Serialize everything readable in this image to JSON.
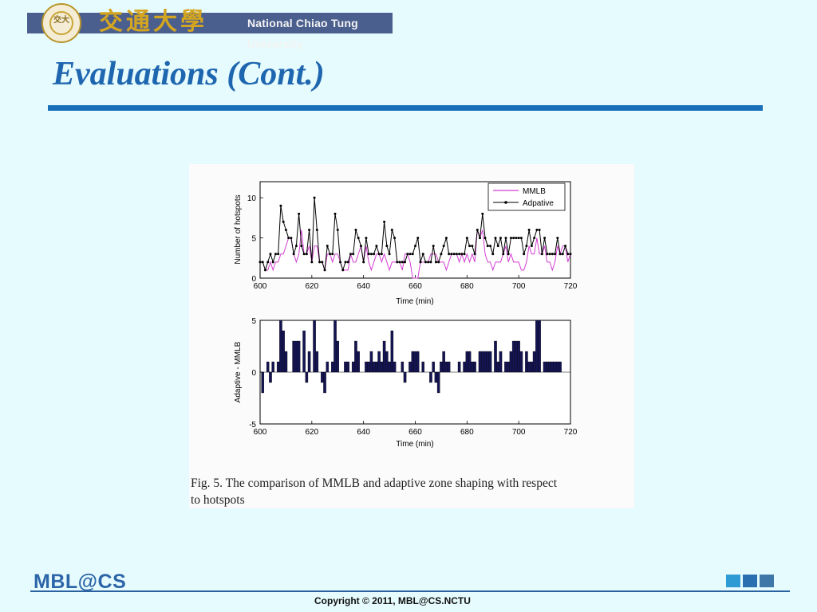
{
  "header": {
    "seal_text": "交大",
    "chinese_name": "交通大學",
    "university_name": "National Chiao Tung University"
  },
  "slide": {
    "title": "Evaluations (Cont.)"
  },
  "figure": {
    "caption_line1": "Fig. 5.   The comparison of MMLB and adaptive zone shaping with respect",
    "caption_line2": "to hotspots"
  },
  "footer": {
    "logo": "MBL@CS",
    "copyright": "Copyright © 2011, MBL@CS.NCTU",
    "square_colors": [
      "#2f9bd4",
      "#2a6fb0",
      "#3f78a8"
    ]
  },
  "colors": {
    "title": "#1f66b0",
    "rule": "#1a70b8",
    "background": "#e6fbfd",
    "mmlb": "#d23fd2",
    "adaptive": "#000000",
    "bars": "#141452"
  },
  "chart_data": [
    {
      "type": "line",
      "xlabel": "Time (min)",
      "ylabel": "Number of hotspots",
      "xlim": [
        600,
        720
      ],
      "ylim": [
        0,
        12
      ],
      "xticks": [
        600,
        620,
        640,
        660,
        680,
        700,
        720
      ],
      "yticks": [
        0,
        5,
        10
      ],
      "legend_position": "top-right",
      "x": [
        600,
        601,
        602,
        603,
        604,
        605,
        606,
        607,
        608,
        609,
        610,
        611,
        612,
        613,
        614,
        615,
        616,
        617,
        618,
        619,
        620,
        621,
        622,
        623,
        624,
        625,
        626,
        627,
        628,
        629,
        630,
        631,
        632,
        633,
        634,
        635,
        636,
        637,
        638,
        639,
        640,
        641,
        642,
        643,
        644,
        645,
        646,
        647,
        648,
        649,
        650,
        651,
        652,
        653,
        654,
        655,
        656,
        657,
        658,
        659,
        660,
        661,
        662,
        663,
        664,
        665,
        666,
        667,
        668,
        669,
        670,
        671,
        672,
        673,
        674,
        675,
        676,
        677,
        678,
        679,
        680,
        681,
        682,
        683,
        684,
        685,
        686,
        687,
        688,
        689,
        690,
        691,
        692,
        693,
        694,
        695,
        696,
        697,
        698,
        699,
        700,
        701,
        702,
        703,
        704,
        705,
        706,
        707,
        708,
        709,
        710,
        711,
        712,
        713,
        714,
        715,
        716,
        717,
        718,
        719,
        720
      ],
      "series": [
        {
          "name": "MMLB",
          "values": [
            2,
            2,
            1,
            1,
            2,
            1,
            2,
            2,
            3,
            3,
            4,
            5,
            5,
            3,
            2,
            3,
            6,
            3,
            3,
            4,
            2,
            4,
            4,
            2,
            2,
            1,
            3,
            3,
            2,
            3,
            3,
            2,
            1,
            1,
            1,
            3,
            2,
            2,
            3,
            4,
            2,
            4,
            2,
            1,
            2,
            3,
            3,
            2,
            3,
            2,
            1,
            2,
            2,
            2,
            2,
            1,
            3,
            3,
            2,
            0,
            0,
            0,
            2,
            2,
            2,
            2,
            3,
            3,
            3,
            2,
            2,
            2,
            1,
            2,
            3,
            3,
            3,
            2,
            3,
            2,
            3,
            2,
            3,
            2,
            6,
            5,
            6,
            3,
            2,
            2,
            1,
            2,
            2,
            2,
            3,
            4,
            2,
            3,
            2,
            2,
            2,
            1,
            1,
            2,
            4,
            3,
            3,
            5,
            3,
            3,
            4,
            2,
            2,
            1,
            2,
            4,
            3,
            4,
            4,
            2,
            3
          ]
        },
        {
          "name": "Adpative",
          "values": [
            2,
            2,
            1,
            2,
            3,
            2,
            3,
            3,
            9,
            7,
            6,
            5,
            5,
            3,
            4,
            8,
            4,
            3,
            3,
            6,
            2,
            10,
            6,
            2,
            2,
            1,
            4,
            3,
            3,
            8,
            6,
            2,
            1,
            2,
            2,
            3,
            3,
            6,
            5,
            4,
            2,
            5,
            3,
            3,
            3,
            4,
            3,
            3,
            7,
            4,
            3,
            6,
            5,
            2,
            2,
            2,
            2,
            3,
            3,
            3,
            4,
            5,
            2,
            3,
            2,
            2,
            2,
            4,
            2,
            2,
            3,
            4,
            5,
            3,
            3,
            3,
            3,
            3,
            3,
            3,
            5,
            4,
            4,
            3,
            6,
            5,
            8,
            5,
            4,
            4,
            3,
            5,
            4,
            5,
            3,
            5,
            3,
            5,
            5,
            5,
            5,
            5,
            3,
            4,
            6,
            4,
            5,
            6,
            6,
            3,
            5,
            3,
            3,
            3,
            3,
            5,
            3,
            3,
            4,
            3,
            3
          ]
        }
      ],
      "legend": [
        "MMLB",
        "Adpative"
      ]
    },
    {
      "type": "bar",
      "xlabel": "Time (min)",
      "ylabel": "Adaptive - MMLB",
      "xlim": [
        600,
        720
      ],
      "ylim": [
        -5,
        5
      ],
      "xticks": [
        600,
        620,
        640,
        660,
        680,
        700,
        720
      ],
      "yticks": [
        -5,
        0,
        5
      ],
      "x": [
        600,
        601,
        602,
        603,
        604,
        605,
        606,
        607,
        608,
        609,
        610,
        611,
        612,
        613,
        614,
        615,
        616,
        617,
        618,
        619,
        620,
        621,
        622,
        623,
        624,
        625,
        626,
        627,
        628,
        629,
        630,
        631,
        632,
        633,
        634,
        635,
        636,
        637,
        638,
        639,
        640,
        641,
        642,
        643,
        644,
        645,
        646,
        647,
        648,
        649,
        650,
        651,
        652,
        653,
        654,
        655,
        656,
        657,
        658,
        659,
        660,
        661,
        662,
        663,
        664,
        665,
        666,
        667,
        668,
        669,
        670,
        671,
        672,
        673,
        674,
        675,
        676,
        677,
        678,
        679,
        680,
        681,
        682,
        683,
        684,
        685,
        686,
        687,
        688,
        689,
        690,
        691,
        692,
        693,
        694,
        695,
        696,
        697,
        698,
        699,
        700,
        701,
        702,
        703,
        704,
        705,
        706,
        707,
        708,
        709,
        710,
        711,
        712,
        713,
        714,
        715,
        716,
        717,
        718,
        719,
        720
      ],
      "values": [
        0,
        -2,
        0,
        1,
        -1,
        1,
        0,
        1,
        5,
        4,
        2,
        0,
        0,
        3,
        3,
        3,
        0,
        4,
        -1,
        2,
        0,
        5,
        2,
        0,
        -1,
        -2,
        1,
        0,
        1,
        5,
        3,
        0,
        0,
        1,
        1,
        0,
        1,
        3,
        2,
        0,
        0,
        1,
        1,
        2,
        1,
        1,
        2,
        1,
        3,
        2,
        1,
        4,
        1,
        0,
        0,
        1,
        -1,
        0,
        1,
        2,
        2,
        2,
        0,
        1,
        0,
        0,
        -1,
        1,
        -1,
        -2,
        1,
        2,
        1,
        1,
        0,
        0,
        0,
        1,
        0,
        1,
        2,
        2,
        1,
        1,
        0,
        2,
        2,
        2,
        2,
        2,
        0,
        3,
        1,
        2,
        0,
        1,
        1,
        2,
        3,
        3,
        3,
        2,
        0,
        2,
        1,
        1,
        2,
        5,
        5,
        0,
        1,
        1,
        1,
        1,
        1,
        1,
        1,
        0,
        0,
        0,
        0
      ]
    }
  ]
}
